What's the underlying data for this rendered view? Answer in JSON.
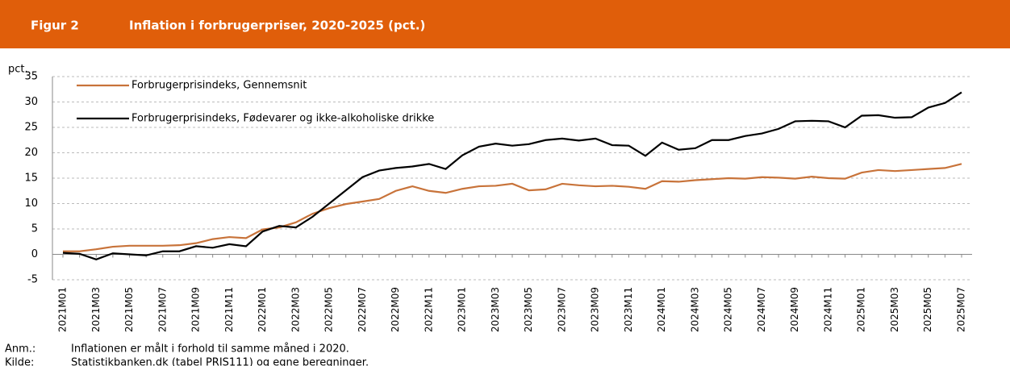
{
  "chart_data": {
    "type": "line",
    "figure_label": "Figur 2",
    "title": "Inflation i forbrugerpriser, 2020-2025 (pct.)",
    "y_label": "pct.",
    "categories": [
      "2021M01",
      null,
      "2021M03",
      null,
      "2021M05",
      null,
      "2021M07",
      null,
      "2021M09",
      null,
      "2021M11",
      null,
      "2022M01",
      null,
      "2022M03",
      null,
      "2022M05",
      null,
      "2022M07",
      null,
      "2022M09",
      null,
      "2022M11",
      null,
      "2023M01",
      null,
      "2023M03",
      null,
      "2023M05",
      null,
      "2023M07",
      null,
      "2023M09",
      null,
      "2023M11",
      null,
      "2024M01",
      null,
      "2024M03",
      null,
      "2024M05",
      null,
      "2024M07",
      null,
      "2024M09",
      null,
      "2024M11",
      null,
      "2025M01",
      null,
      "2025M03",
      null,
      "2025M05",
      null,
      "2025M07"
    ],
    "series": [
      {
        "name": "Forbrugerprisindeks, Gennemsnit",
        "color": "#c8733a",
        "values": [
          0.6,
          0.6,
          1.0,
          1.5,
          1.7,
          1.7,
          1.7,
          1.8,
          2.2,
          3.0,
          3.4,
          3.2,
          4.9,
          5.3,
          6.3,
          8.0,
          9.1,
          9.9,
          10.4,
          10.9,
          12.5,
          13.4,
          12.5,
          12.1,
          12.9,
          13.4,
          13.5,
          13.9,
          12.6,
          12.8,
          13.9,
          13.6,
          13.4,
          13.5,
          13.3,
          12.9,
          14.4,
          14.3,
          14.6,
          14.8,
          15.0,
          14.9,
          15.2,
          15.1,
          14.9,
          15.3,
          15.0,
          14.9,
          16.1,
          16.6,
          16.4,
          16.6,
          16.8,
          17.0,
          17.8
        ]
      },
      {
        "name": "Forbrugerprisindeks, Fødevarer og ikke-alkoholiske drikke",
        "color": "#000000",
        "values": [
          0.3,
          0.1,
          -1.0,
          0.2,
          0.0,
          -0.2,
          0.6,
          0.6,
          1.6,
          1.3,
          2.0,
          1.6,
          4.5,
          5.6,
          5.3,
          7.4,
          10.0,
          12.6,
          15.2,
          16.5,
          17.0,
          17.3,
          17.8,
          16.8,
          19.5,
          21.2,
          21.8,
          21.4,
          21.7,
          22.5,
          22.8,
          22.4,
          22.8,
          21.5,
          21.4,
          19.4,
          22.0,
          20.6,
          20.9,
          22.5,
          22.5,
          23.3,
          23.8,
          24.7,
          26.2,
          26.3,
          26.2,
          25.0,
          27.3,
          27.4,
          26.9,
          27.0,
          28.9,
          29.8,
          31.9
        ]
      }
    ],
    "ylim": [
      -5,
      35
    ],
    "yticks": [
      -5,
      0,
      5,
      10,
      15,
      20,
      25,
      30,
      35
    ],
    "grid": true,
    "legend": "top-left"
  },
  "notes": [
    {
      "label": "Anm.:",
      "text": "Inflationen er målt i forhold til samme måned i 2020."
    },
    {
      "label": "Kilde:",
      "text": "Statistikbanken.dk (tabel PRIS111) og egne beregninger."
    }
  ]
}
